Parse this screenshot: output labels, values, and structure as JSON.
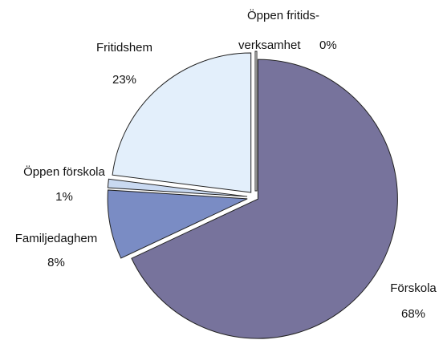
{
  "chart_data": {
    "type": "pie",
    "categories": [
      "Förskola",
      "Familjedaghem",
      "Öppen förskola",
      "Fritidshem",
      "Öppen fritids-\nverksamhet"
    ],
    "values": [
      68,
      8,
      1,
      23,
      0
    ],
    "value_labels": [
      "68%",
      "8%",
      "1%",
      "23%",
      "0%"
    ],
    "colors": [
      "#77739c",
      "#7a8cc4",
      "#c9d9f1",
      "#e3effb",
      "#ffffff"
    ]
  }
}
